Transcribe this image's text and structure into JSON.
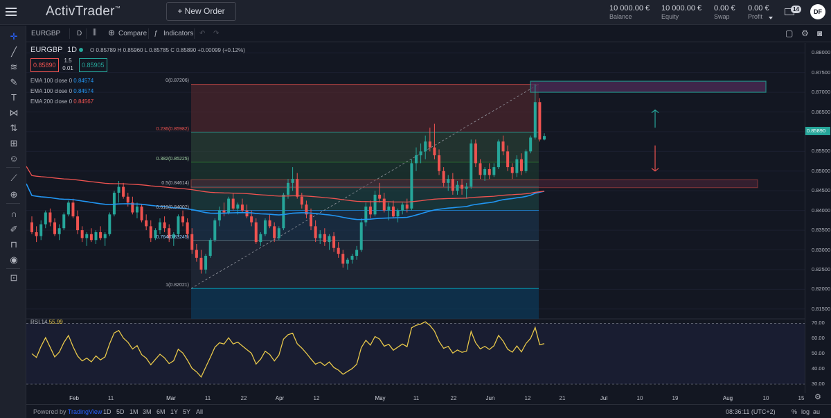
{
  "app": {
    "logo": "ActivTrader",
    "logo_mark": "™",
    "new_order_label": "+  New Order",
    "stats": [
      {
        "value": "10 000.00 €",
        "label": "Balance"
      },
      {
        "value": "10 000.00 €",
        "label": "Equity"
      },
      {
        "value": "0.00 €",
        "label": "Swap"
      },
      {
        "value": "0.00 €",
        "label": "Profit"
      }
    ],
    "mail_count": "14",
    "avatar_initials": "DF"
  },
  "toolbar": {
    "symbol": "EURGBP",
    "interval": "D",
    "compare_label": "Compare",
    "indicators_label": "Indicators"
  },
  "legend": {
    "symbol": "EURGBP",
    "interval": "1D",
    "ohlc": "O 0.85789  H 0.85960  L 0.85785  C 0.85890  +0.00099 (+0.12%)",
    "sell_price": "0.85890",
    "buy_price": "0.85905",
    "spread_top": "1.5",
    "spread_bottom": "0.01",
    "emas": [
      {
        "label": "EMA 100 close 0",
        "value": "0.84574",
        "color": "#2196f3"
      },
      {
        "label": "EMA 100 close 0",
        "value": "0.84574",
        "color": "#2196f3"
      },
      {
        "label": "EMA 200 close 0",
        "value": "0.84567",
        "color": "#ef5350"
      }
    ],
    "rsi_label": "RSI 14",
    "rsi_value": "55.99"
  },
  "fib_levels": [
    {
      "ratio": "0(0.87206)",
      "price": 0.87206
    },
    {
      "ratio": "0.236(0.85982)",
      "price": 0.85982
    },
    {
      "ratio": "0.382(0.85225)",
      "price": 0.85225
    },
    {
      "ratio": "0.5(0.84614)",
      "price": 0.84614
    },
    {
      "ratio": "0.618(0.84002)",
      "price": 0.84002
    },
    {
      "ratio": "0.764(0.83245)",
      "price": 0.83245
    },
    {
      "ratio": "1(0.82021)",
      "price": 0.82021
    }
  ],
  "price_axis": [
    "0.88000",
    "0.87500",
    "0.87000",
    "0.86500",
    "0.86000",
    "0.85500",
    "0.85000",
    "0.84500",
    "0.84000",
    "0.83500",
    "0.83000",
    "0.82500",
    "0.82000",
    "0.81500"
  ],
  "current_price_label": "0.85890",
  "rsi_axis": [
    "70.00",
    "60.00",
    "50.00",
    "40.00",
    "30.00"
  ],
  "x_axis": [
    {
      "t": "Feb",
      "bold": true
    },
    {
      "t": "11"
    },
    {
      "t": "Mar",
      "bold": true
    },
    {
      "t": "11"
    },
    {
      "t": "22"
    },
    {
      "t": "Apr",
      "bold": true
    },
    {
      "t": "12"
    },
    {
      "t": "May",
      "bold": true
    },
    {
      "t": "11"
    },
    {
      "t": "22"
    },
    {
      "t": "Jun",
      "bold": true
    },
    {
      "t": "12"
    },
    {
      "t": "21"
    },
    {
      "t": "Jul",
      "bold": true
    },
    {
      "t": "10"
    },
    {
      "t": "19"
    },
    {
      "t": "Aug",
      "bold": true
    },
    {
      "t": "10"
    },
    {
      "t": "15"
    }
  ],
  "bottom": {
    "powered_by": "Powered by",
    "brand": "TradingView",
    "timeframes": [
      "1D",
      "5D",
      "1M",
      "3M",
      "6M",
      "1Y",
      "5Y",
      "All"
    ],
    "clock": "08:36:11 (UTC+2)",
    "pct": "%",
    "log": "log",
    "auto": "au"
  },
  "colors": {
    "up": "#26a69a",
    "down": "#ef5350",
    "ema100": "#2196f3",
    "ema200": "#ef5350",
    "rsi": "#e8c84a"
  },
  "chart_data": {
    "type": "candlestick",
    "symbol": "EURGBP",
    "candles": [
      [
        0.837,
        0.8385,
        0.834,
        0.8345
      ],
      [
        0.8345,
        0.836,
        0.832,
        0.8335
      ],
      [
        0.8335,
        0.8375,
        0.8325,
        0.8365
      ],
      [
        0.8365,
        0.84,
        0.8355,
        0.8395
      ],
      [
        0.8395,
        0.8405,
        0.836,
        0.837
      ],
      [
        0.837,
        0.838,
        0.8335,
        0.834
      ],
      [
        0.834,
        0.8365,
        0.8325,
        0.8355
      ],
      [
        0.8355,
        0.8395,
        0.835,
        0.839
      ],
      [
        0.839,
        0.8425,
        0.8385,
        0.842
      ],
      [
        0.842,
        0.843,
        0.838,
        0.8385
      ],
      [
        0.8385,
        0.84,
        0.834,
        0.835
      ],
      [
        0.835,
        0.836,
        0.832,
        0.833
      ],
      [
        0.833,
        0.8345,
        0.831,
        0.834
      ],
      [
        0.834,
        0.8355,
        0.832,
        0.8325
      ],
      [
        0.8325,
        0.835,
        0.8315,
        0.8345
      ],
      [
        0.8345,
        0.836,
        0.8325,
        0.833
      ],
      [
        0.833,
        0.8345,
        0.831,
        0.834
      ],
      [
        0.834,
        0.8395,
        0.8335,
        0.839
      ],
      [
        0.839,
        0.845,
        0.8385,
        0.8445
      ],
      [
        0.8445,
        0.8475,
        0.842,
        0.846
      ],
      [
        0.846,
        0.847,
        0.843,
        0.8435
      ],
      [
        0.8435,
        0.8445,
        0.841,
        0.842
      ],
      [
        0.842,
        0.8435,
        0.839,
        0.8395
      ],
      [
        0.8395,
        0.842,
        0.838,
        0.841
      ],
      [
        0.841,
        0.8415,
        0.837,
        0.8375
      ],
      [
        0.8375,
        0.839,
        0.835,
        0.836
      ],
      [
        0.836,
        0.8375,
        0.832,
        0.833
      ],
      [
        0.833,
        0.8355,
        0.8325,
        0.835
      ],
      [
        0.835,
        0.838,
        0.834,
        0.837
      ],
      [
        0.837,
        0.8385,
        0.8345,
        0.8355
      ],
      [
        0.8355,
        0.8365,
        0.832,
        0.833
      ],
      [
        0.833,
        0.8345,
        0.831,
        0.834
      ],
      [
        0.834,
        0.839,
        0.8335,
        0.8385
      ],
      [
        0.8385,
        0.84,
        0.836,
        0.837
      ],
      [
        0.837,
        0.838,
        0.833,
        0.834
      ],
      [
        0.834,
        0.8355,
        0.829,
        0.83
      ],
      [
        0.83,
        0.8315,
        0.827,
        0.828
      ],
      [
        0.828,
        0.83,
        0.824,
        0.825
      ],
      [
        0.825,
        0.829,
        0.824,
        0.8285
      ],
      [
        0.8285,
        0.833,
        0.828,
        0.8325
      ],
      [
        0.8325,
        0.838,
        0.832,
        0.8375
      ],
      [
        0.8375,
        0.841,
        0.836,
        0.84
      ],
      [
        0.84,
        0.842,
        0.8385,
        0.8395
      ],
      [
        0.8395,
        0.8435,
        0.839,
        0.843
      ],
      [
        0.843,
        0.8445,
        0.84,
        0.8405
      ],
      [
        0.8405,
        0.842,
        0.839,
        0.8415
      ],
      [
        0.8415,
        0.843,
        0.8395,
        0.84
      ],
      [
        0.84,
        0.8415,
        0.838,
        0.8385
      ],
      [
        0.8385,
        0.84,
        0.836,
        0.837
      ],
      [
        0.837,
        0.838,
        0.8315,
        0.832
      ],
      [
        0.832,
        0.8345,
        0.831,
        0.834
      ],
      [
        0.834,
        0.838,
        0.8335,
        0.8375
      ],
      [
        0.8375,
        0.839,
        0.8355,
        0.836
      ],
      [
        0.836,
        0.837,
        0.832,
        0.833
      ],
      [
        0.833,
        0.836,
        0.8325,
        0.8355
      ],
      [
        0.8355,
        0.8445,
        0.835,
        0.844
      ],
      [
        0.844,
        0.848,
        0.843,
        0.847
      ],
      [
        0.847,
        0.851,
        0.845,
        0.848
      ],
      [
        0.848,
        0.8495,
        0.843,
        0.8435
      ],
      [
        0.8435,
        0.8445,
        0.8405,
        0.8415
      ],
      [
        0.8415,
        0.8425,
        0.838,
        0.839
      ],
      [
        0.839,
        0.8405,
        0.835,
        0.836
      ],
      [
        0.836,
        0.8375,
        0.832,
        0.833
      ],
      [
        0.833,
        0.835,
        0.8315,
        0.834
      ],
      [
        0.834,
        0.8355,
        0.831,
        0.832
      ],
      [
        0.832,
        0.834,
        0.83,
        0.8335
      ],
      [
        0.8335,
        0.8345,
        0.8295,
        0.8305
      ],
      [
        0.8305,
        0.832,
        0.828,
        0.829
      ],
      [
        0.829,
        0.83,
        0.8255,
        0.8265
      ],
      [
        0.8265,
        0.828,
        0.825,
        0.8275
      ],
      [
        0.8275,
        0.829,
        0.8265,
        0.8285
      ],
      [
        0.8285,
        0.831,
        0.8275,
        0.83
      ],
      [
        0.83,
        0.838,
        0.8295,
        0.837
      ],
      [
        0.837,
        0.842,
        0.836,
        0.841
      ],
      [
        0.841,
        0.8425,
        0.838,
        0.839
      ],
      [
        0.839,
        0.845,
        0.8385,
        0.844
      ],
      [
        0.844,
        0.847,
        0.842,
        0.843
      ],
      [
        0.843,
        0.8445,
        0.8395,
        0.84
      ],
      [
        0.84,
        0.842,
        0.8375,
        0.841
      ],
      [
        0.841,
        0.8425,
        0.838,
        0.8385
      ],
      [
        0.8385,
        0.8405,
        0.837,
        0.84
      ],
      [
        0.84,
        0.842,
        0.839,
        0.8415
      ],
      [
        0.8415,
        0.843,
        0.8395,
        0.8405
      ],
      [
        0.8405,
        0.853,
        0.84,
        0.852
      ],
      [
        0.852,
        0.856,
        0.85,
        0.854
      ],
      [
        0.854,
        0.857,
        0.852,
        0.855
      ],
      [
        0.855,
        0.859,
        0.853,
        0.8575
      ],
      [
        0.8575,
        0.861,
        0.855,
        0.856
      ],
      [
        0.856,
        0.862,
        0.853,
        0.854
      ],
      [
        0.854,
        0.8555,
        0.849,
        0.85
      ],
      [
        0.85,
        0.851,
        0.846,
        0.847
      ],
      [
        0.847,
        0.849,
        0.845,
        0.848
      ],
      [
        0.848,
        0.8495,
        0.844,
        0.845
      ],
      [
        0.845,
        0.8475,
        0.844,
        0.8465
      ],
      [
        0.8465,
        0.848,
        0.844,
        0.8455
      ],
      [
        0.8455,
        0.847,
        0.843,
        0.846
      ],
      [
        0.846,
        0.858,
        0.8455,
        0.857
      ],
      [
        0.857,
        0.858,
        0.851,
        0.852
      ],
      [
        0.852,
        0.853,
        0.848,
        0.849
      ],
      [
        0.849,
        0.851,
        0.8475,
        0.8505
      ],
      [
        0.8505,
        0.852,
        0.848,
        0.849
      ],
      [
        0.849,
        0.852,
        0.8485,
        0.851
      ],
      [
        0.851,
        0.858,
        0.8505,
        0.8575
      ],
      [
        0.8575,
        0.859,
        0.854,
        0.855
      ],
      [
        0.855,
        0.8565,
        0.85,
        0.851
      ],
      [
        0.851,
        0.852,
        0.848,
        0.8495
      ],
      [
        0.8495,
        0.854,
        0.8485,
        0.853
      ],
      [
        0.853,
        0.8545,
        0.849,
        0.85
      ],
      [
        0.85,
        0.8555,
        0.8495,
        0.855
      ],
      [
        0.855,
        0.859,
        0.8545,
        0.8585
      ],
      [
        0.8585,
        0.872,
        0.858,
        0.8675
      ],
      [
        0.8675,
        0.8685,
        0.8575,
        0.858
      ],
      [
        0.858,
        0.8596,
        0.8578,
        0.8589
      ]
    ],
    "fib_retracement": {
      "high": 0.87206,
      "low": 0.82021
    },
    "zones": [
      {
        "name": "resistance",
        "top": 0.8728,
        "bottom": 0.87,
        "color": "#26a69a"
      },
      {
        "name": "support",
        "top": 0.8478,
        "bottom": 0.8458,
        "color": "#ef5350"
      }
    ],
    "y_range": [
      0.8125,
      0.8825
    ],
    "rsi_range": [
      25,
      72
    ]
  }
}
